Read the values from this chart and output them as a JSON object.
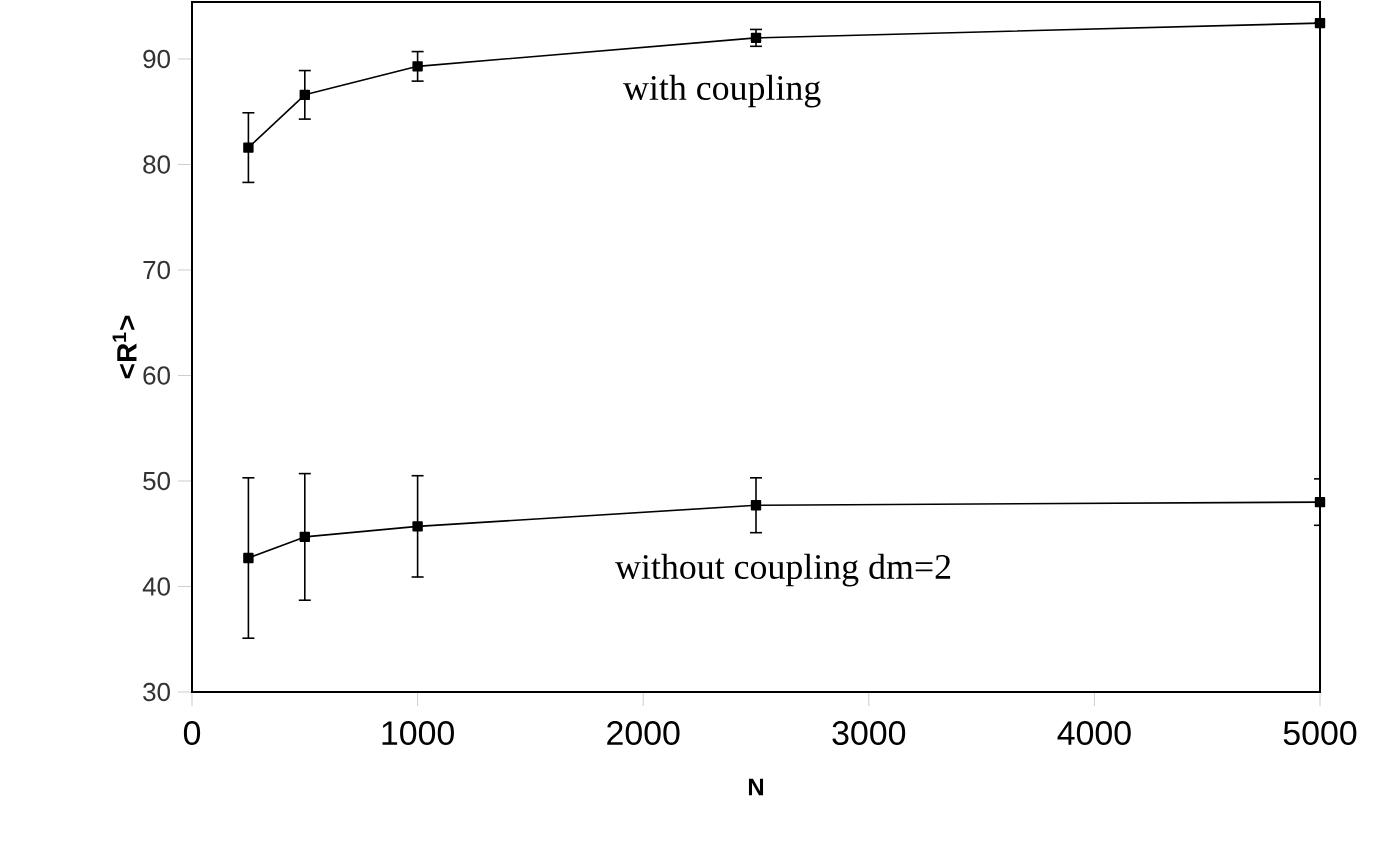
{
  "chart_data": {
    "type": "line",
    "xlabel": "N",
    "ylabel": "<R$^{1}$>",
    "x": [
      250,
      500,
      1000,
      2500,
      5000
    ],
    "series": [
      {
        "name": "with coupling",
        "color": "#000000",
        "values": [
          81.6,
          86.6,
          89.3,
          92.0,
          93.4
        ],
        "errors": [
          3.3,
          2.3,
          1.4,
          0.8,
          null
        ]
      },
      {
        "name": "without coupling dm=2",
        "color": "#000000",
        "values": [
          42.7,
          44.7,
          45.7,
          47.7,
          48.0
        ],
        "errors": [
          7.6,
          6.0,
          4.8,
          2.6,
          2.2
        ]
      }
    ],
    "xlim": [
      0,
      5000
    ],
    "ylim": [
      30,
      95.4
    ],
    "xticks": [
      0,
      1000,
      2000,
      3000,
      4000,
      5000
    ],
    "yticks": [
      30,
      40,
      50,
      60,
      70,
      80,
      90
    ],
    "marker": "square",
    "line_style": "solid",
    "grid": false,
    "legend": false
  }
}
